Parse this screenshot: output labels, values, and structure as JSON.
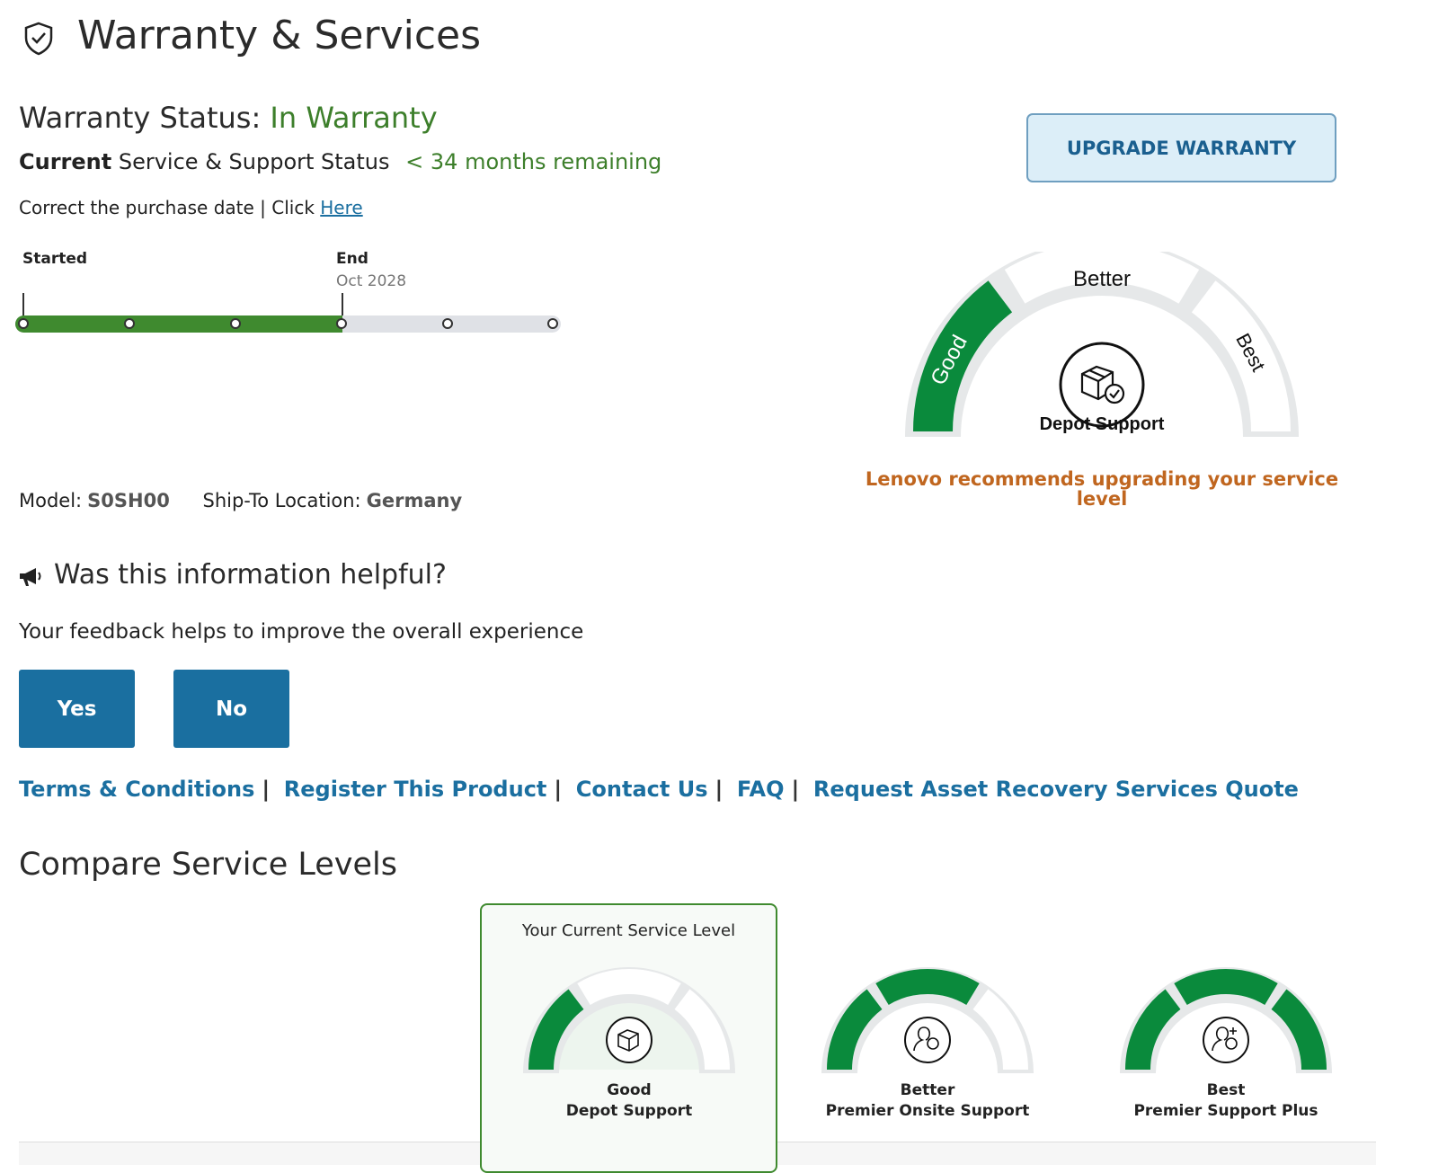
{
  "header": {
    "title": "Warranty & Services",
    "icon": "shield-check-icon"
  },
  "warranty": {
    "status_label": "Warranty Status:",
    "status_value": "In Warranty",
    "current_bold": "Current",
    "current_rest": "Service & Support Status",
    "remaining": "< 34 months remaining",
    "correct_text": "Correct the purchase date | Click",
    "correct_link": "Here"
  },
  "timeline": {
    "started_label": "Started",
    "end_label": "End",
    "end_date": "Oct 2028",
    "progress_fraction": 0.6
  },
  "product": {
    "model_label": "Model:",
    "model_value": "S0SH00",
    "ship_label": "Ship-To Location:",
    "ship_value": "Germany"
  },
  "upgrade_button": "UPGRADE WARRANTY",
  "gauge": {
    "segments": [
      "Good",
      "Better",
      "Best"
    ],
    "current_level": 1,
    "current_name": "Depot Support",
    "recommendation": "Lenovo recommends upgrading your service level"
  },
  "feedback": {
    "title": "Was this information helpful?",
    "subtitle": "Your feedback helps to improve the overall experience",
    "yes": "Yes",
    "no": "No"
  },
  "links": [
    "Terms & Conditions",
    "Register This Product",
    "Contact Us",
    "FAQ",
    "Request Asset Recovery Services Quote"
  ],
  "compare": {
    "title": "Compare Service Levels",
    "current_card_title": "Your Current Service Level",
    "levels": [
      {
        "tier": "Good",
        "name": "Depot Support",
        "filled": 1
      },
      {
        "tier": "Better",
        "name": "Premier Onsite Support",
        "filled": 2
      },
      {
        "tier": "Best",
        "name": "Premier Support Plus",
        "filled": 3
      }
    ]
  },
  "colors": {
    "green": "#0a8a3c",
    "status_green": "#3d7f2b",
    "link": "#1b6fa0",
    "orange": "#c0661f"
  }
}
